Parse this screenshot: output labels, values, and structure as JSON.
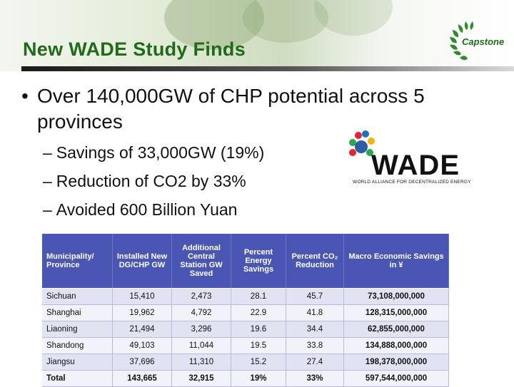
{
  "header": {
    "title": "New WADE Study Finds",
    "brand": "Capstone"
  },
  "bullets": {
    "main": "Over 140,000GW of CHP potential across 5 provinces",
    "sub": [
      "Savings of 33,000GW (19%)",
      "Reduction of CO2 by 33%",
      "Avoided 600 Billion Yuan"
    ],
    "dash": "–",
    "dot": "•"
  },
  "wade_logo": {
    "name": "WADE",
    "tagline": "WORLD ALLIANCE FOR DECENTRALIZED ENERGY"
  },
  "table": {
    "headers": [
      "Municipality/ Province",
      "Installed New DG/CHP GW",
      "Additional Central Station GW Saved",
      "Percent Energy Savings",
      "Percent CO₂ Reduction",
      "Macro Economic Savings in ¥"
    ],
    "rows": [
      [
        "Sichuan",
        "15,410",
        "2,473",
        "28.1",
        "45.7",
        "73,108,000,000"
      ],
      [
        "Shanghai",
        "19,962",
        "4,792",
        "22.9",
        "41.8",
        "128,315,000,000"
      ],
      [
        "Liaoning",
        "21,494",
        "3,296",
        "19.6",
        "34.4",
        "62,855,000,000"
      ],
      [
        "Shandong",
        "49,103",
        "11,044",
        "19.5",
        "33.8",
        "134,888,000,000"
      ],
      [
        "Jiangsu",
        "37,696",
        "11,310",
        "15.2",
        "27.4",
        "198,378,000,000"
      ],
      [
        "Total",
        "143,665",
        "32,915",
        "19%",
        "33%",
        "597,544,000,000"
      ]
    ]
  }
}
